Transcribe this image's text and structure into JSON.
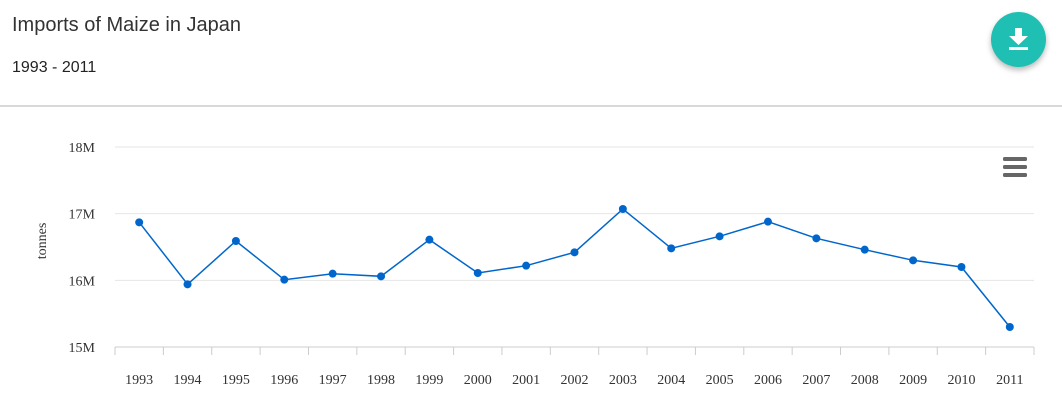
{
  "header": {
    "title": "Imports of Maize in Japan",
    "subtitle": "1993 - 2011"
  },
  "icons": {
    "download": "download-icon",
    "menu": "hamburger-menu-icon"
  },
  "colors": {
    "accent": "#1fc0b3",
    "series": "#0066cc",
    "grid": "#e6e6e6"
  },
  "chart_data": {
    "type": "line",
    "title": "Imports of Maize in Japan",
    "subtitle": "1993 - 2011",
    "xlabel": "",
    "ylabel": "tonnes",
    "ylim": [
      15000000,
      18000000
    ],
    "yticks": [
      15000000,
      16000000,
      17000000,
      18000000
    ],
    "ytick_labels": [
      "15M",
      "16M",
      "17M",
      "18M"
    ],
    "categories": [
      "1993",
      "1994",
      "1995",
      "1996",
      "1997",
      "1998",
      "1999",
      "2000",
      "2001",
      "2002",
      "2003",
      "2004",
      "2005",
      "2006",
      "2007",
      "2008",
      "2009",
      "2010",
      "2011"
    ],
    "series": [
      {
        "values": [
          16870000,
          15940000,
          16590000,
          16010000,
          16100000,
          16060000,
          16610000,
          16110000,
          16220000,
          16420000,
          17070000,
          16480000,
          16660000,
          16880000,
          16630000,
          16460000,
          16300000,
          16200000,
          15300000
        ]
      }
    ],
    "grid": true,
    "legend": "none"
  }
}
